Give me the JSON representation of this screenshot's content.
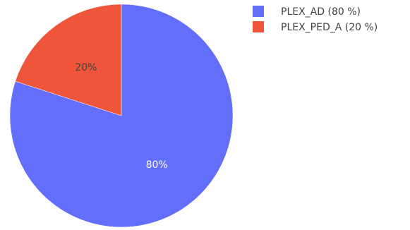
{
  "chart_data": {
    "type": "pie",
    "labels": [
      "PLEX_AD",
      "PLEX_PED_A"
    ],
    "values": [
      80,
      20
    ],
    "slice_labels": [
      "80%",
      "20%"
    ],
    "colors": [
      "#636efa",
      "#ef553b"
    ],
    "legend": {
      "position": "top-right",
      "entries": [
        "PLEX_AD (80 %)",
        "PLEX_PED_A (20 %)"
      ]
    },
    "start_angle_deg": 0,
    "direction": "clockwise"
  }
}
